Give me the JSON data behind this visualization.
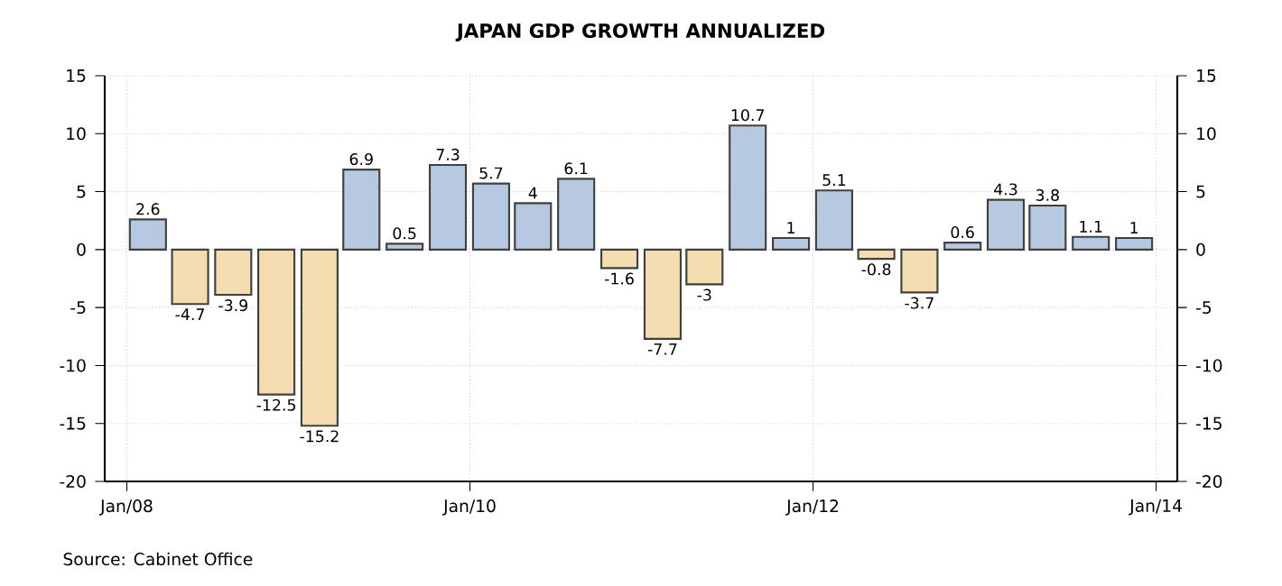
{
  "chart_data": {
    "type": "bar",
    "title": "JAPAN GDP GROWTH ANNUALIZED",
    "x": [
      "2008-02-15",
      "2008-05-15",
      "2008-08-15",
      "2008-11-15",
      "2009-02-15",
      "2009-05-15",
      "2009-08-15",
      "2009-11-15",
      "2010-02-15",
      "2010-05-15",
      "2010-08-15",
      "2010-11-15",
      "2011-02-15",
      "2011-05-15",
      "2011-08-15",
      "2011-11-15",
      "2012-02-15",
      "2012-05-15",
      "2012-08-15",
      "2012-11-15",
      "2013-02-15",
      "2013-05-15",
      "2013-08-15",
      "2013-11-15"
    ],
    "values": [
      2.6,
      -4.7,
      -3.9,
      -12.5,
      -15.2,
      6.9,
      0.5,
      7.3,
      5.7,
      4,
      6.1,
      -1.6,
      -7.7,
      -3,
      10.7,
      1,
      5.1,
      -0.8,
      -3.7,
      0.6,
      4.3,
      3.8,
      1.1,
      1
    ],
    "colors": [
      "#b7c8e1",
      "#f3dcb0",
      "#f3dcb0",
      "#f3dcb0",
      "#f3dcb0",
      "#b7c8e1",
      "#b7c8e1",
      "#b7c8e1",
      "#b7c8e1",
      "#b7c8e1",
      "#b7c8e1",
      "#f3dcb0",
      "#f3dcb0",
      "#f3dcb0",
      "#b7c8e1",
      "#b7c8e1",
      "#b7c8e1",
      "#f3dcb0",
      "#f3dcb0",
      "#b7c8e1",
      "#b7c8e1",
      "#b7c8e1",
      "#b7c8e1",
      "#b7c8e1"
    ],
    "xlim": [
      "2007-11-15",
      "2014-02-15"
    ],
    "xticks": [
      {
        "value": "2008-01-01",
        "label": "Jan/08"
      },
      {
        "value": "2010-01-01",
        "label": "Jan/10"
      },
      {
        "value": "2012-01-01",
        "label": "Jan/12"
      },
      {
        "value": "2014-01-01",
        "label": "Jan/14"
      }
    ],
    "ylim": [
      -20,
      15
    ],
    "yticks": [
      -20,
      -15,
      -10,
      -5,
      0,
      5,
      10,
      15
    ],
    "y2lim": [
      -20,
      15
    ],
    "y2ticks": [
      -20,
      -15,
      -10,
      -5,
      0,
      5,
      10,
      15
    ],
    "grid": true,
    "data_labels": true,
    "annotations": [
      "Source: Cabinet Office"
    ]
  }
}
